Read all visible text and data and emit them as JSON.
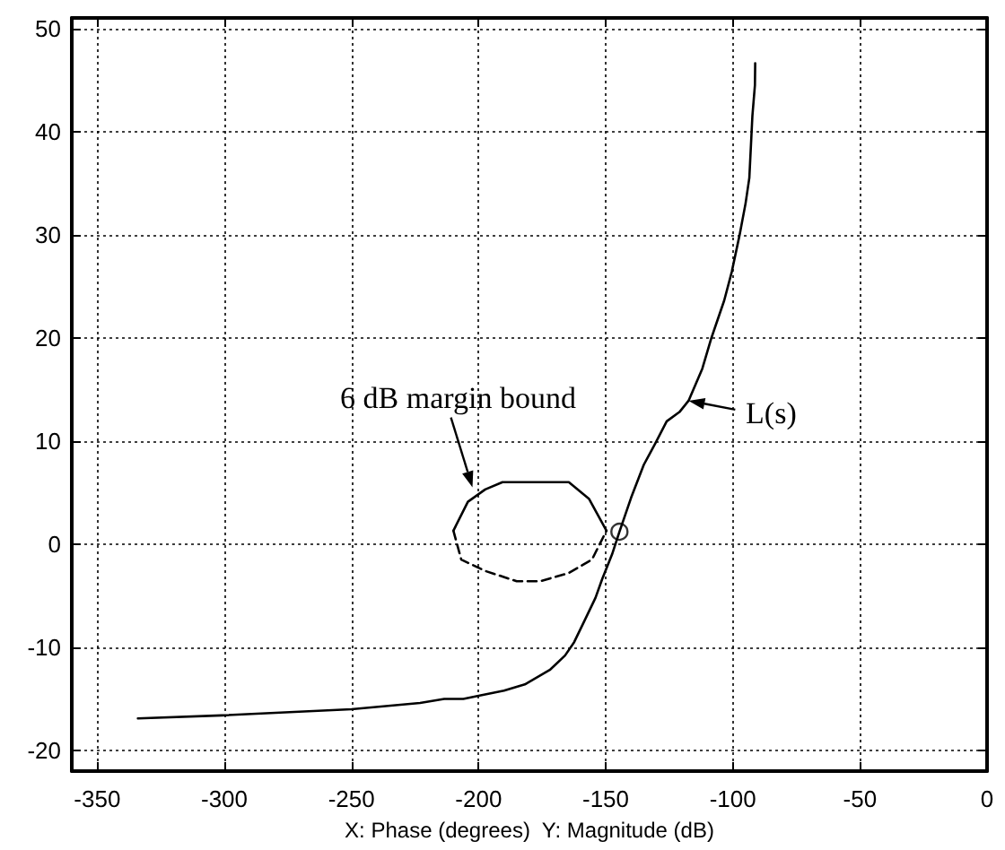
{
  "chart_data": {
    "type": "line",
    "xlabel": "X: Phase (degrees)  Y: Magnitude (dB)",
    "xlim": [
      -360,
      0
    ],
    "xticks": [
      -350,
      -300,
      -250,
      -200,
      -150,
      -100,
      -50,
      0
    ],
    "ylim": [
      -22,
      51
    ],
    "yticks": [
      -20,
      -10,
      0,
      10,
      20,
      30,
      40,
      50
    ],
    "grid": true,
    "series": [
      {
        "color": "#000000",
        "line_style": "solid",
        "marker": "none",
        "x": [
          -334,
          -301,
          -250,
          -223,
          -213.5,
          -206,
          -200,
          -190,
          -181.8,
          -172,
          -166,
          -162.4,
          -157.5,
          -154,
          -151.4,
          -147.5,
          -144.6,
          -140,
          -135,
          -130.6,
          -126,
          -121,
          -117.4,
          -112,
          -108.4,
          -103.4,
          -100.4,
          -97.3,
          -95,
          -93.5,
          -92.3,
          -91.3,
          -91.2
        ],
        "values": [
          -16.9,
          -16.6,
          -16,
          -15.4,
          -15,
          -15,
          -14.7,
          -14.2,
          -13.6,
          -12.2,
          -10.8,
          -9.5,
          -7,
          -5.2,
          -3.4,
          -1,
          1.2,
          4.5,
          7.7,
          9.7,
          11.9,
          12.8,
          13.9,
          17,
          20,
          23.6,
          26.4,
          30,
          33,
          35.5,
          41.5,
          44.5,
          46.6
        ]
      },
      {
        "color": "#000000",
        "line_style": "solid",
        "marker": "none",
        "x": [
          -209.9,
          -204.2,
          -197.4,
          -190.6,
          -164.5,
          -156.6,
          -149.7
        ],
        "values": [
          1.3,
          4.1,
          5.3,
          6,
          6,
          4.4,
          1.3
        ]
      },
      {
        "color": "#000000",
        "line_style": "dashed",
        "marker": "none",
        "x": [
          -209.9,
          -206.8,
          -197.4,
          -185,
          -175.8,
          -164.5,
          -155.4,
          -149.7
        ],
        "values": [
          1.3,
          -1.5,
          -2.6,
          -3.6,
          -3.6,
          -2.8,
          -1.5,
          1.3
        ]
      },
      {
        "type": "scatter",
        "color": "#000000",
        "marker": "circle",
        "x": [
          -144.6
        ],
        "values": [
          1.2
        ]
      }
    ],
    "annotations": [
      {
        "text": "6 dB margin bound",
        "x": -202.4,
        "y": 5.5
      },
      {
        "text": "L(s)",
        "x": -117.4,
        "y": 13.9
      }
    ]
  }
}
